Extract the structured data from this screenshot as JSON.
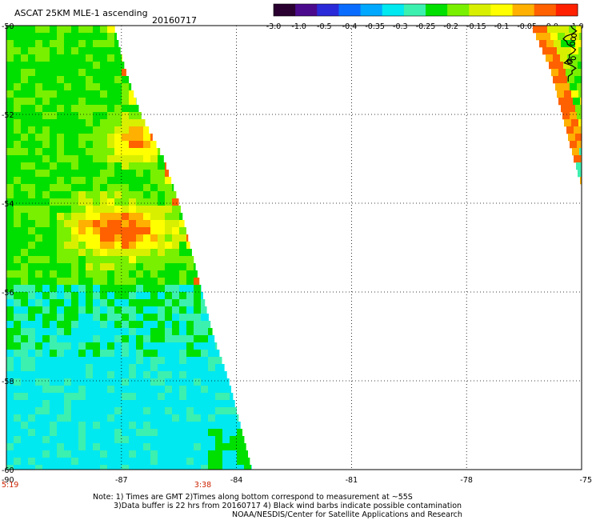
{
  "header": {
    "title": "ASCAT 25KM MLE-1 ascending",
    "date": "20160717"
  },
  "colorbar": {
    "labels": [
      "-3.0",
      "-1.0",
      "-0.5",
      "-0.4",
      "-0.35",
      "-0.3",
      "-0.25",
      "-0.2",
      "-0.15",
      "-0.1",
      "-0.05",
      "0.0",
      "1.0"
    ],
    "colors": [
      "#2a0030",
      "#4b0a8c",
      "#2a2ad8",
      "#0a6cff",
      "#00a8ff",
      "#00e8f0",
      "#3cf0b0",
      "#00e000",
      "#78f000",
      "#d8f000",
      "#ffff00",
      "#ffb000",
      "#ff6000",
      "#ff2000"
    ]
  },
  "map": {
    "lat_range": [
      -60,
      -50
    ],
    "lon_range": [
      -90,
      -75
    ],
    "lat_ticks": [
      "-50",
      "-52",
      "-54",
      "-56",
      "-58",
      "-60"
    ],
    "lat_tick_values": [
      -50,
      -52,
      -54,
      -56,
      -58,
      -60
    ],
    "lon_ticks": [
      "-90",
      "-87",
      "-84",
      "-81",
      "-78",
      "-75"
    ],
    "lon_tick_values": [
      -90,
      -87,
      -84,
      -81,
      -78,
      -75
    ],
    "time_labels": [
      {
        "text": "5:19",
        "lon": -90
      },
      {
        "text": "3:38",
        "lon": -85.1
      }
    ]
  },
  "swaths": {
    "west_edge": [
      {
        "lat": -50.0,
        "lon": -87.2
      },
      {
        "lat": -51.0,
        "lon": -86.9
      },
      {
        "lat": -52.0,
        "lon": -86.5
      },
      {
        "lat": -53.0,
        "lon": -85.9
      },
      {
        "lat": -54.0,
        "lon": -85.5
      },
      {
        "lat": -55.0,
        "lon": -85.2
      },
      {
        "lat": -56.0,
        "lon": -84.9
      },
      {
        "lat": -57.0,
        "lon": -84.6
      },
      {
        "lat": -58.0,
        "lon": -84.2
      },
      {
        "lat": -59.0,
        "lon": -83.9
      },
      {
        "lat": -60.0,
        "lon": -83.6
      }
    ],
    "east_edge": [
      {
        "lat": -50.0,
        "lon": -76.3
      },
      {
        "lat": -51.0,
        "lon": -75.8
      },
      {
        "lat": -52.0,
        "lon": -75.5
      },
      {
        "lat": -53.0,
        "lon": -75.2
      },
      {
        "lat": -53.6,
        "lon": -75.0
      }
    ]
  },
  "footer": {
    "line1": "Note: 1) Times are GMT 2)Times along bottom correspond to measurement at ~55S",
    "line2": "3)Data buffer is 22 hrs from 20160717 4) Black wind barbs indicate possible contamination",
    "line3": "NOAA/NESDIS/Center for Satellite Applications and Research"
  }
}
